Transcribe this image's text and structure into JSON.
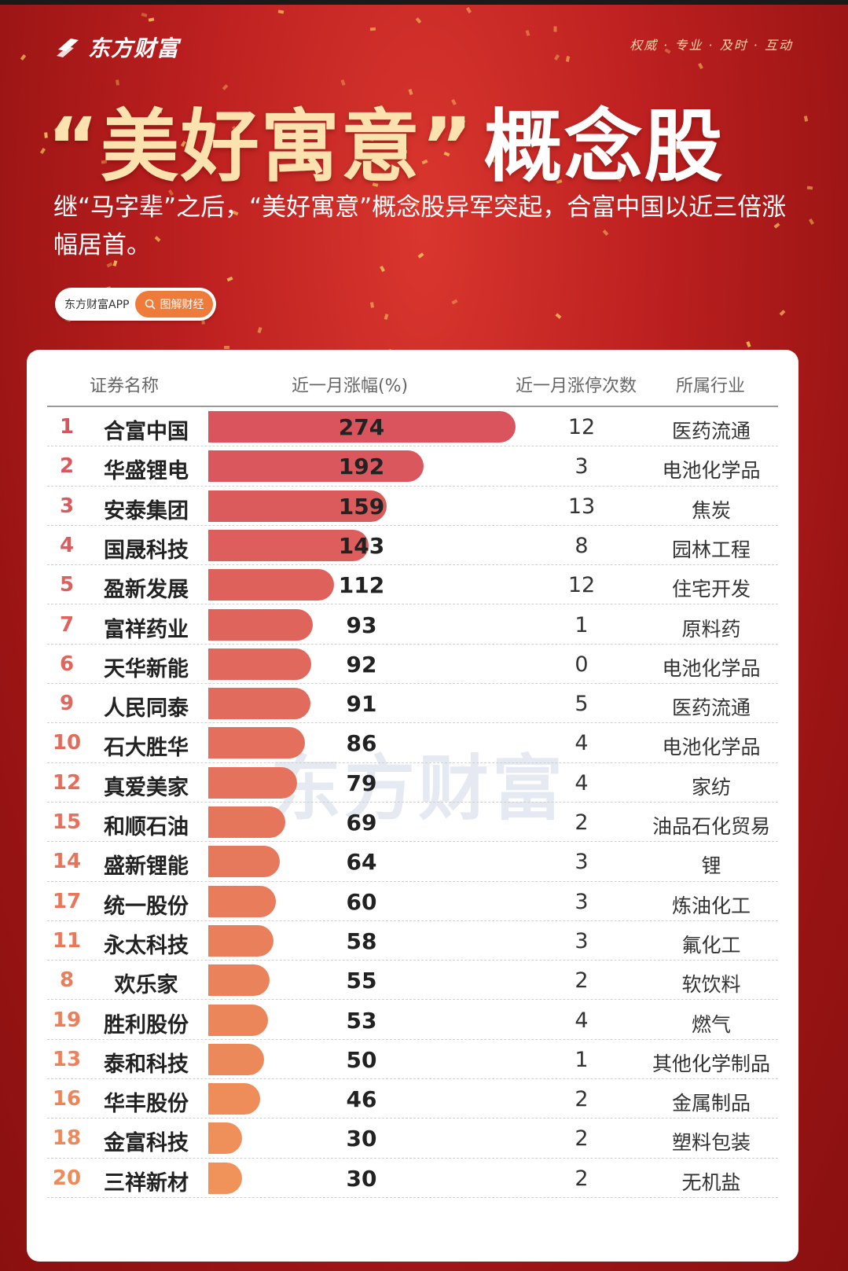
{
  "brand": {
    "name": "东方财富",
    "slogan": "权威 · 专业 · 及时 · 互动"
  },
  "header": {
    "title_quoted": "“美好寓意”",
    "title_plain": "概念股",
    "subtitle": "继“马字辈”之后，“美好寓意”概念股异军突起，合富中国以近三倍涨幅居首。",
    "app_label": "东方财富APP",
    "tag_label": "图解财经"
  },
  "watermark": "东方财富",
  "table": {
    "col_name": "证券名称",
    "col_gain": "近一月涨幅(%)",
    "col_limit": "近一月涨停次数",
    "col_industry": "所属行业"
  },
  "colors": {
    "bar_top": "#d9545d",
    "bar_bottom": "#f0935a",
    "rank_top": "#d9545d",
    "rank_bottom": "#ef8a5a"
  },
  "chart_data": {
    "type": "bar",
    "orientation": "horizontal",
    "xlim": [
      0,
      274
    ],
    "rows": [
      {
        "rank": "1",
        "name": "合富中国",
        "gain": 274,
        "limit_ups": "12",
        "industry": "医药流通"
      },
      {
        "rank": "2",
        "name": "华盛锂电",
        "gain": 192,
        "limit_ups": "3",
        "industry": "电池化学品"
      },
      {
        "rank": "3",
        "name": "安泰集团",
        "gain": 159,
        "limit_ups": "13",
        "industry": "焦炭"
      },
      {
        "rank": "4",
        "name": "国晟科技",
        "gain": 143,
        "limit_ups": "8",
        "industry": "园林工程"
      },
      {
        "rank": "5",
        "name": "盈新发展",
        "gain": 112,
        "limit_ups": "12",
        "industry": "住宅开发"
      },
      {
        "rank": "7",
        "name": "富祥药业",
        "gain": 93,
        "limit_ups": "1",
        "industry": "原料药"
      },
      {
        "rank": "6",
        "name": "天华新能",
        "gain": 92,
        "limit_ups": "0",
        "industry": "电池化学品"
      },
      {
        "rank": "9",
        "name": "人民同泰",
        "gain": 91,
        "limit_ups": "5",
        "industry": "医药流通"
      },
      {
        "rank": "10",
        "name": "石大胜华",
        "gain": 86,
        "limit_ups": "4",
        "industry": "电池化学品"
      },
      {
        "rank": "12",
        "name": "真爱美家",
        "gain": 79,
        "limit_ups": "4",
        "industry": "家纺"
      },
      {
        "rank": "15",
        "name": "和顺石油",
        "gain": 69,
        "limit_ups": "2",
        "industry": "油品石化贸易"
      },
      {
        "rank": "14",
        "name": "盛新锂能",
        "gain": 64,
        "limit_ups": "3",
        "industry": "锂"
      },
      {
        "rank": "17",
        "name": "统一股份",
        "gain": 60,
        "limit_ups": "3",
        "industry": "炼油化工"
      },
      {
        "rank": "11",
        "name": "永太科技",
        "gain": 58,
        "limit_ups": "3",
        "industry": "氟化工"
      },
      {
        "rank": "8",
        "name": "欢乐家",
        "gain": 55,
        "limit_ups": "2",
        "industry": "软饮料"
      },
      {
        "rank": "19",
        "name": "胜利股份",
        "gain": 53,
        "limit_ups": "4",
        "industry": "燃气"
      },
      {
        "rank": "13",
        "name": "泰和科技",
        "gain": 50,
        "limit_ups": "1",
        "industry": "其他化学制品"
      },
      {
        "rank": "16",
        "name": "华丰股份",
        "gain": 46,
        "limit_ups": "2",
        "industry": "金属制品"
      },
      {
        "rank": "18",
        "name": "金富科技",
        "gain": 30,
        "limit_ups": "2",
        "industry": "塑料包装"
      },
      {
        "rank": "20",
        "name": "三祥新材",
        "gain": 30,
        "limit_ups": "2",
        "industry": "无机盐"
      }
    ]
  }
}
